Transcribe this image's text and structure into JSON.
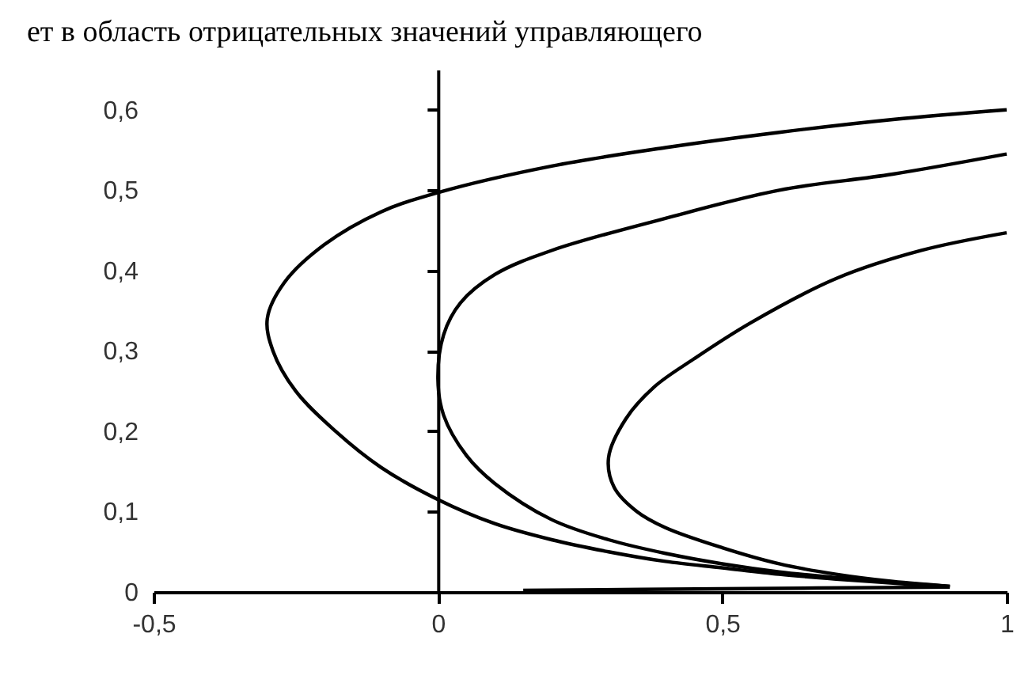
{
  "chart_data": {
    "type": "line",
    "annotations": [
      "ет в область отрицательных значений управляющего"
    ],
    "xlim": [
      -0.5,
      1
    ],
    "ylim": [
      0,
      0.65
    ],
    "xticks": [
      {
        "value": -0.5,
        "label": "-0,5"
      },
      0,
      {
        "value": 0.5,
        "label": "0,5"
      },
      1
    ],
    "yticks": [
      0,
      {
        "value": 0.1,
        "label": "0,1"
      },
      {
        "value": 0.2,
        "label": "0,2"
      },
      {
        "value": 0.3,
        "label": "0,3"
      },
      {
        "value": 0.4,
        "label": "0,4"
      },
      {
        "value": 0.5,
        "label": "0,5"
      },
      {
        "value": 0.6,
        "label": "0,6"
      }
    ],
    "legend": false,
    "marker": "none",
    "line_style": "solid",
    "series": [
      {
        "color": "#000000",
        "x": [
          1,
          0.8,
          0.6,
          0.4,
          0.2,
          0,
          -0.1,
          -0.2,
          -0.27,
          -0.3,
          -0.29,
          -0.25,
          -0.18,
          -0.1,
          0,
          0.1,
          0.2,
          0.3,
          0.4,
          0.5,
          0.6,
          0.7,
          0.8,
          0.9
        ],
        "values": [
          0.6,
          0.588,
          0.572,
          0.553,
          0.53,
          0.497,
          0.473,
          0.432,
          0.385,
          0.34,
          0.3,
          0.25,
          0.2,
          0.155,
          0.115,
          0.085,
          0.065,
          0.05,
          0.038,
          0.03,
          0.022,
          0.016,
          0.011,
          0.006
        ]
      },
      {
        "color": "#000000",
        "x": [
          1,
          0.8,
          0.6,
          0.4,
          0.2,
          0.1,
          0.04,
          0.01,
          0,
          0.01,
          0.05,
          0.1,
          0.2,
          0.3,
          0.4,
          0.5,
          0.6,
          0.7,
          0.8,
          0.9
        ],
        "values": [
          0.545,
          0.52,
          0.5,
          0.465,
          0.425,
          0.395,
          0.36,
          0.32,
          0.265,
          0.22,
          0.17,
          0.135,
          0.09,
          0.065,
          0.048,
          0.035,
          0.025,
          0.018,
          0.012,
          0.007
        ]
      },
      {
        "color": "#000000",
        "x": [
          1,
          0.85,
          0.7,
          0.55,
          0.45,
          0.38,
          0.33,
          0.3,
          0.31,
          0.35,
          0.4,
          0.5,
          0.6,
          0.7,
          0.8,
          0.9
        ],
        "values": [
          0.447,
          0.425,
          0.39,
          0.335,
          0.29,
          0.255,
          0.215,
          0.167,
          0.13,
          0.1,
          0.08,
          0.055,
          0.035,
          0.022,
          0.013,
          0.007
        ]
      },
      {
        "color": "#000000",
        "x": [
          0.15,
          0.5,
          0.9
        ],
        "values": [
          0.002,
          0.004,
          0.006
        ]
      }
    ]
  }
}
